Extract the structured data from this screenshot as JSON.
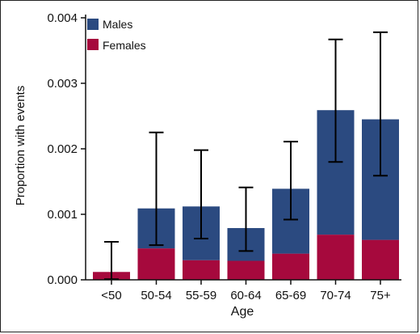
{
  "chart_data": {
    "type": "bar",
    "stacked": true,
    "xlabel": "Age",
    "ylabel": "Proportion with events",
    "ylim": [
      0,
      0.004
    ],
    "yticks": [
      "0.000",
      "0.001",
      "0.002",
      "0.003",
      "0.004"
    ],
    "categories": [
      "<50",
      "50-54",
      "55-59",
      "60-64",
      "65-69",
      "70-74",
      "75+"
    ],
    "series": [
      {
        "name": "Females",
        "color": "#a6093d",
        "values": [
          0.00012,
          0.00048,
          0.0003,
          0.00029,
          0.0004,
          0.00069,
          0.00061
        ]
      },
      {
        "name": "Males",
        "color": "#2b4a80",
        "values": [
          0.0,
          0.00061,
          0.00082,
          0.0005,
          0.00099,
          0.0019,
          0.00184
        ]
      }
    ],
    "totals": [
      0.00012,
      0.00109,
      0.00112,
      0.00079,
      0.00139,
      0.00259,
      0.00245
    ],
    "error_bars": [
      {
        "low": 1e-05,
        "high": 0.00058
      },
      {
        "low": 0.00053,
        "high": 0.00225
      },
      {
        "low": 0.00063,
        "high": 0.00198
      },
      {
        "low": 0.00044,
        "high": 0.00141
      },
      {
        "low": 0.00092,
        "high": 0.00211
      },
      {
        "low": 0.0018,
        "high": 0.00367
      },
      {
        "low": 0.00159,
        "high": 0.00378
      }
    ],
    "legend": [
      {
        "label": "Males",
        "color": "#2b4a80"
      },
      {
        "label": "Females",
        "color": "#a6093d"
      }
    ],
    "legend_position": "top-left",
    "grid": false
  }
}
